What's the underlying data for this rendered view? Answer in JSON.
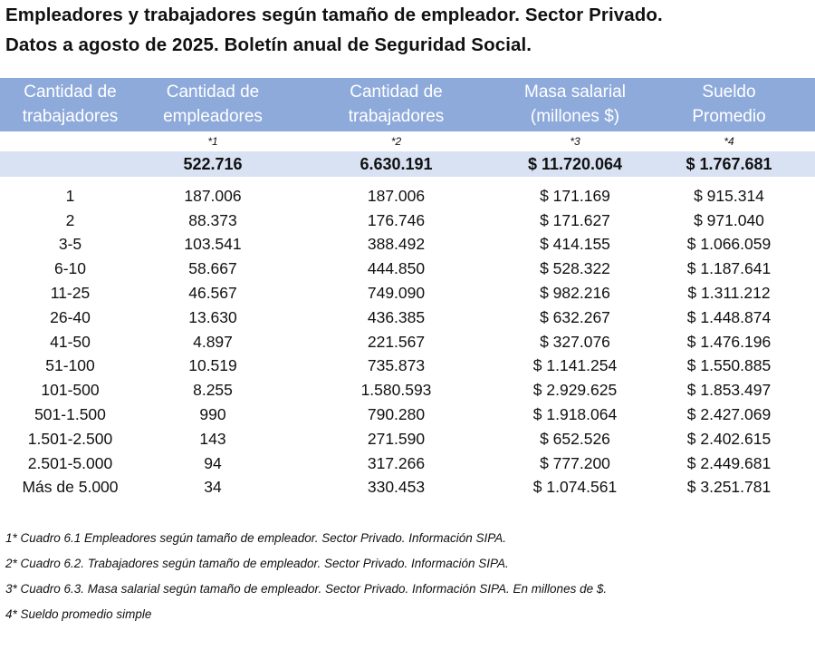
{
  "title": {
    "line1": "Empleadores y trabajadores según tamaño de empleador. Sector Privado.",
    "line2": "Datos a agosto de 2025. Boletín anual de Seguridad Social."
  },
  "colors": {
    "header_bg": "#8eaadb",
    "total_bg": "#d9e2f3"
  },
  "table": {
    "headers": [
      [
        "Cantidad de",
        "trabajadores"
      ],
      [
        "Cantidad de",
        "empleadores"
      ],
      [
        "Cantidad de",
        "trabajadores"
      ],
      [
        "Masa salarial",
        "(millones $)"
      ],
      [
        "Sueldo",
        "Promedio"
      ]
    ],
    "footnote_refs": [
      "",
      "*1",
      "*2",
      "*3",
      "*4"
    ],
    "total": [
      "",
      "522.716",
      "6.630.191",
      "$ 11.720.064",
      "$ 1.767.681"
    ],
    "rows": [
      [
        "1",
        "187.006",
        "187.006",
        "$ 171.169",
        "$ 915.314"
      ],
      [
        "2",
        "88.373",
        "176.746",
        "$ 171.627",
        "$ 971.040"
      ],
      [
        "3-5",
        "103.541",
        "388.492",
        "$ 414.155",
        "$ 1.066.059"
      ],
      [
        "6-10",
        "58.667",
        "444.850",
        "$ 528.322",
        "$ 1.187.641"
      ],
      [
        "11-25",
        "46.567",
        "749.090",
        "$ 982.216",
        "$ 1.311.212"
      ],
      [
        "26-40",
        "13.630",
        "436.385",
        "$ 632.267",
        "$ 1.448.874"
      ],
      [
        "41-50",
        "4.897",
        "221.567",
        "$ 327.076",
        "$ 1.476.196"
      ],
      [
        "51-100",
        "10.519",
        "735.873",
        "$ 1.141.254",
        "$ 1.550.885"
      ],
      [
        "101-500",
        "8.255",
        "1.580.593",
        "$ 2.929.625",
        "$ 1.853.497"
      ],
      [
        "501-1.500",
        "990",
        "790.280",
        "$ 1.918.064",
        "$ 2.427.069"
      ],
      [
        "1.501-2.500",
        "143",
        "271.590",
        "$ 652.526",
        "$ 2.402.615"
      ],
      [
        "2.501-5.000",
        "94",
        "317.266",
        "$ 777.200",
        "$ 2.449.681"
      ],
      [
        "Más de 5.000",
        "34",
        "330.453",
        "$ 1.074.561",
        "$ 3.251.781"
      ]
    ]
  },
  "notes": [
    "1* Cuadro 6.1 Empleadores según tamaño de empleador. Sector Privado. Información SIPA.",
    "2* Cuadro 6.2. Trabajadores según tamaño de empleador. Sector Privado. Información SIPA.",
    "3* Cuadro 6.3. Masa salarial según tamaño de empleador. Sector Privado. Información SIPA. En millones de $.",
    "4* Sueldo promedio simple"
  ]
}
